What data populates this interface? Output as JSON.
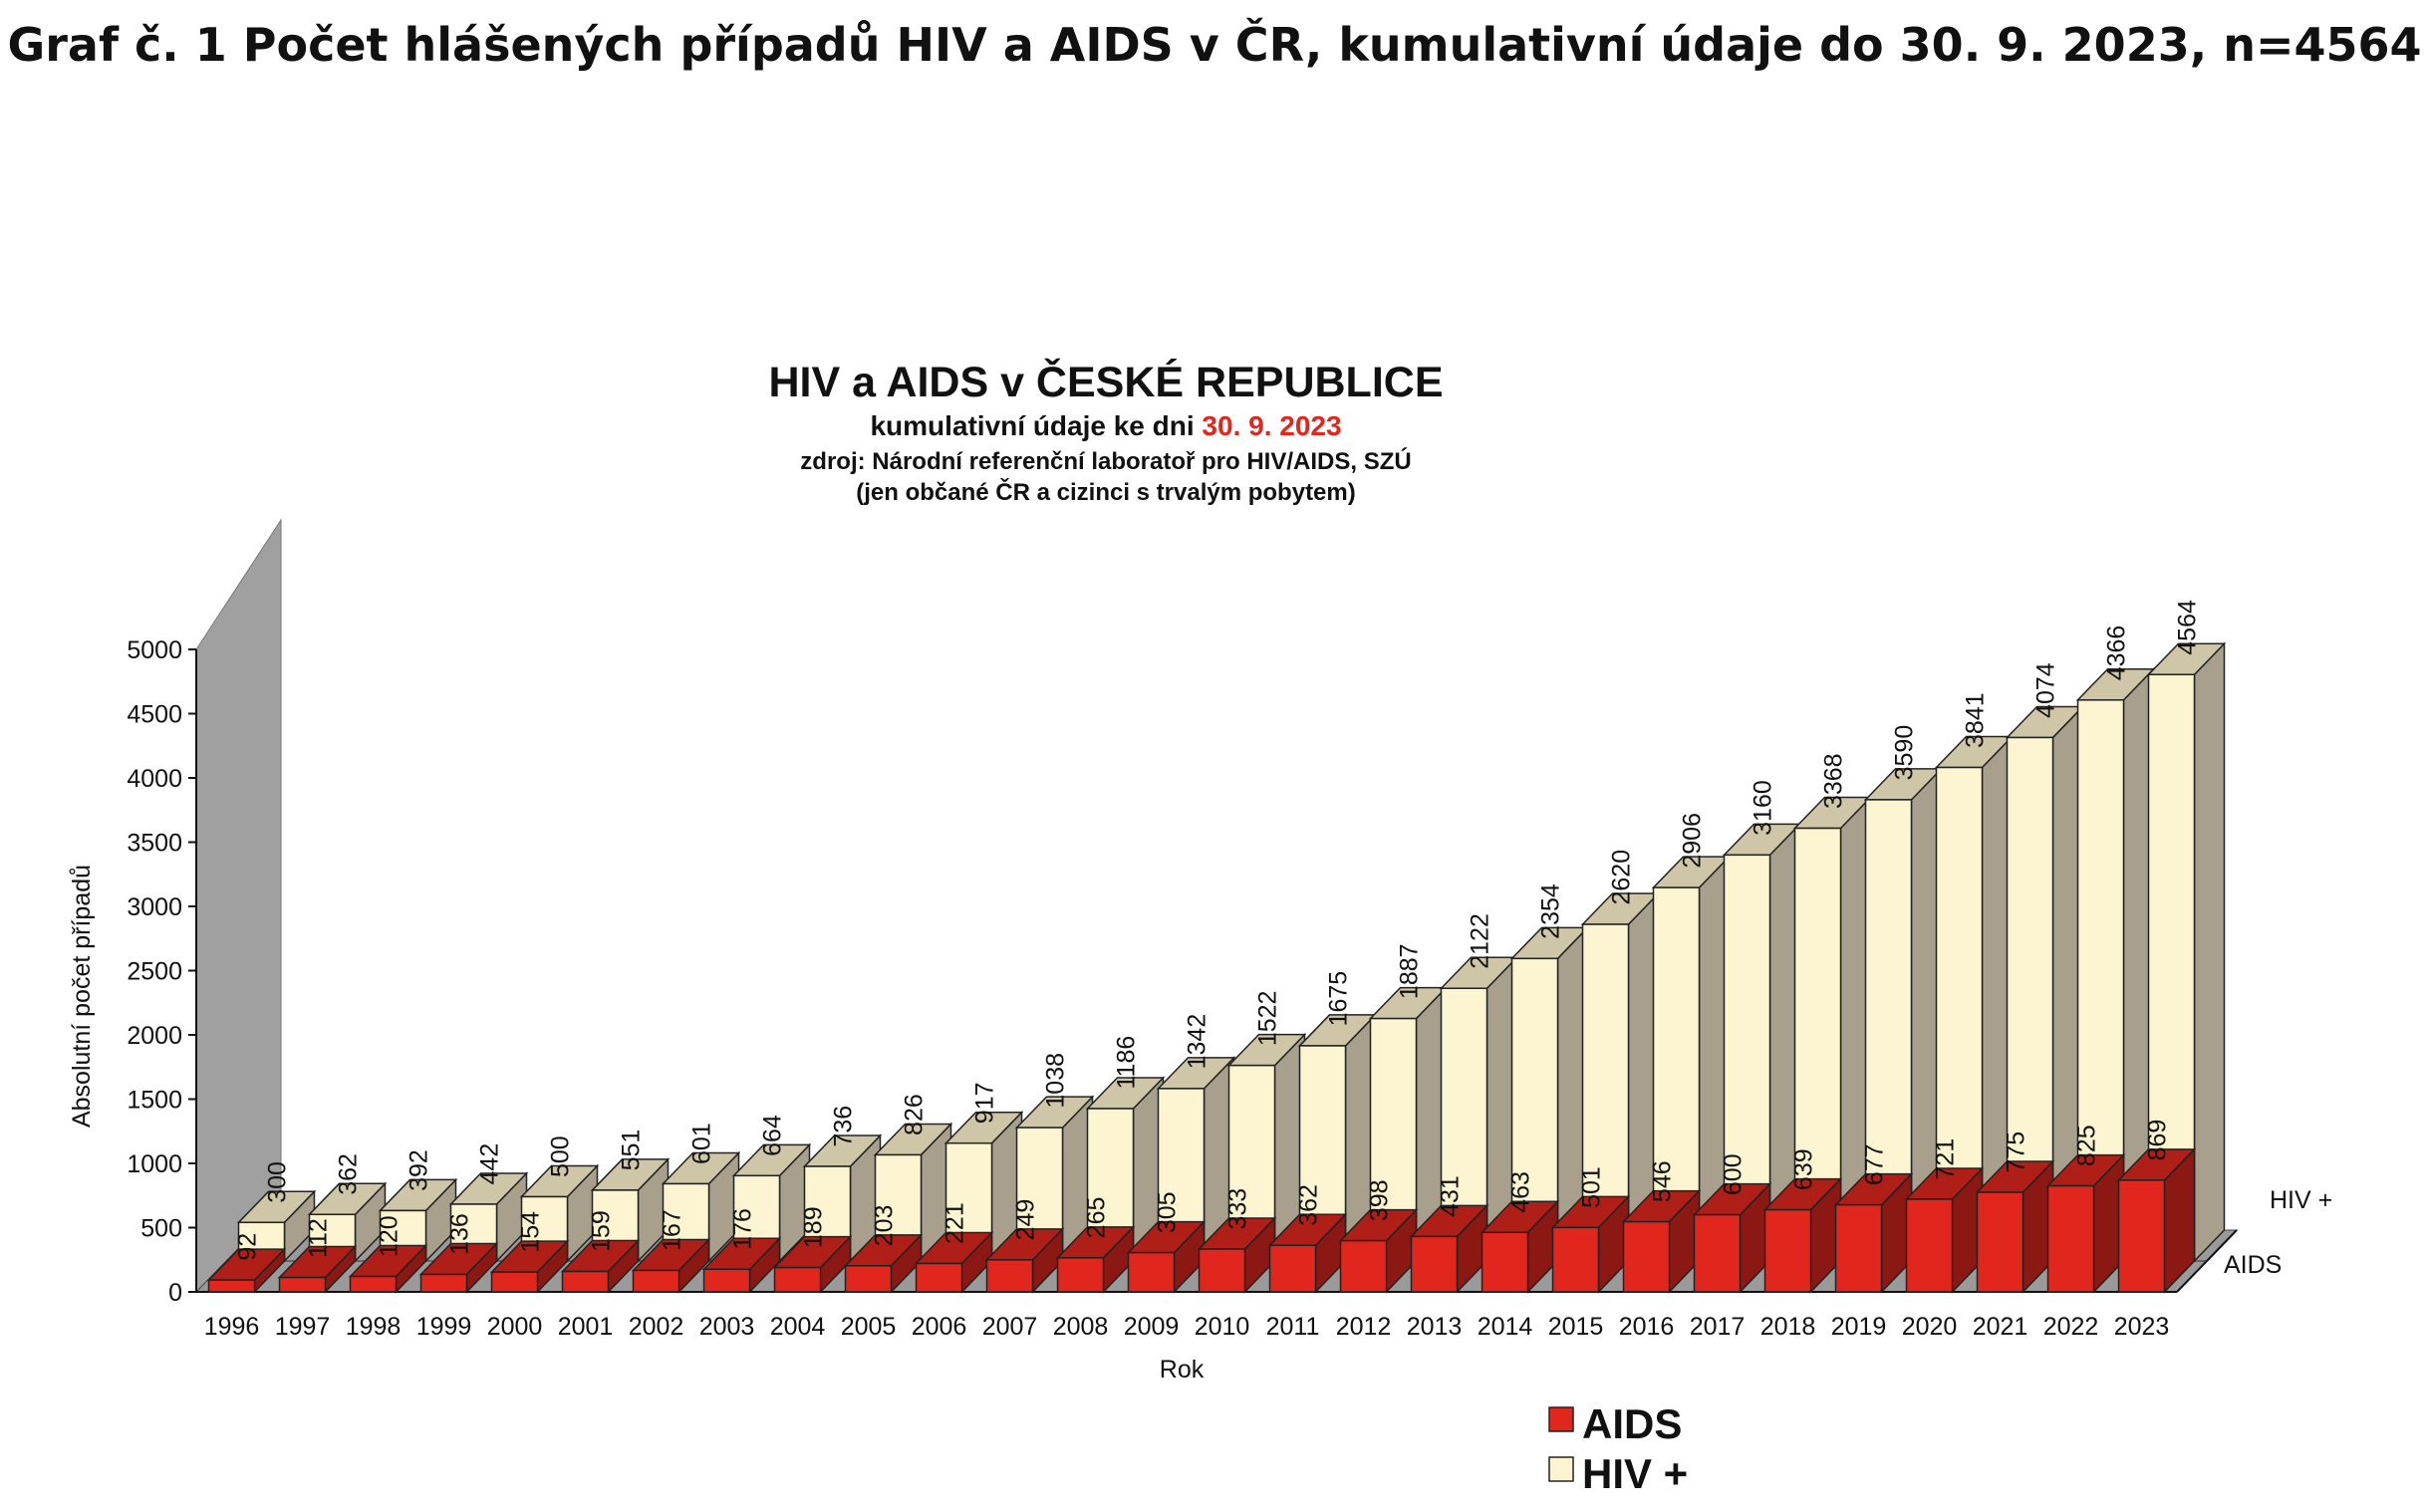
{
  "page_title": "Graf č. 1 Počet hlášených případů HIV a AIDS v ČR, kumulativní údaje do 30. 9. 2023, n=4564",
  "colors": {
    "aids": "#e0261d",
    "hiv": "#fdf5d2",
    "hiv_side": "#a8a08c",
    "wall": "#a0a0a0",
    "date_red": "#e0261d"
  },
  "chart_data": {
    "type": "bar",
    "title": "HIV a AIDS v ČESKÉ REPUBLICE",
    "subtitle_prefix": "kumulativní údaje ke dni ",
    "subtitle_date": "30. 9. 2023",
    "source_line": "zdroj: Národní referenční laboratoř pro HIV/AIDS, SZÚ",
    "note_line": "(jen občané ČR a cizinci s trvalým pobytem)",
    "xlabel": "Rok",
    "ylabel": "Absolutní počet případů",
    "ylim": [
      0,
      5000
    ],
    "yticks": [
      0,
      500,
      1000,
      1500,
      2000,
      2500,
      3000,
      3500,
      4000,
      4500,
      5000
    ],
    "categories": [
      "1996",
      "1997",
      "1998",
      "1999",
      "2000",
      "2001",
      "2002",
      "2003",
      "2004",
      "2005",
      "2006",
      "2007",
      "2008",
      "2009",
      "2010",
      "2011",
      "2012",
      "2013",
      "2014",
      "2015",
      "2016",
      "2017",
      "2018",
      "2019",
      "2020",
      "2021",
      "2022",
      "2023"
    ],
    "series": [
      {
        "name": "AIDS",
        "values": [
          92,
          112,
          120,
          136,
          154,
          159,
          167,
          176,
          189,
          203,
          221,
          249,
          265,
          305,
          333,
          362,
          398,
          431,
          463,
          501,
          546,
          600,
          639,
          677,
          721,
          775,
          825,
          869
        ]
      },
      {
        "name": "HIV +",
        "values": [
          300,
          362,
          392,
          442,
          500,
          551,
          601,
          664,
          736,
          826,
          917,
          1038,
          1186,
          1342,
          1522,
          1675,
          1887,
          2122,
          2354,
          2620,
          2906,
          3160,
          3368,
          3590,
          3841,
          4074,
          4366,
          4564
        ]
      }
    ],
    "depth_labels": [
      "HIV +",
      "AIDS"
    ],
    "legend": [
      "AIDS",
      "HIV +"
    ],
    "legend_position": "bottom-right"
  }
}
